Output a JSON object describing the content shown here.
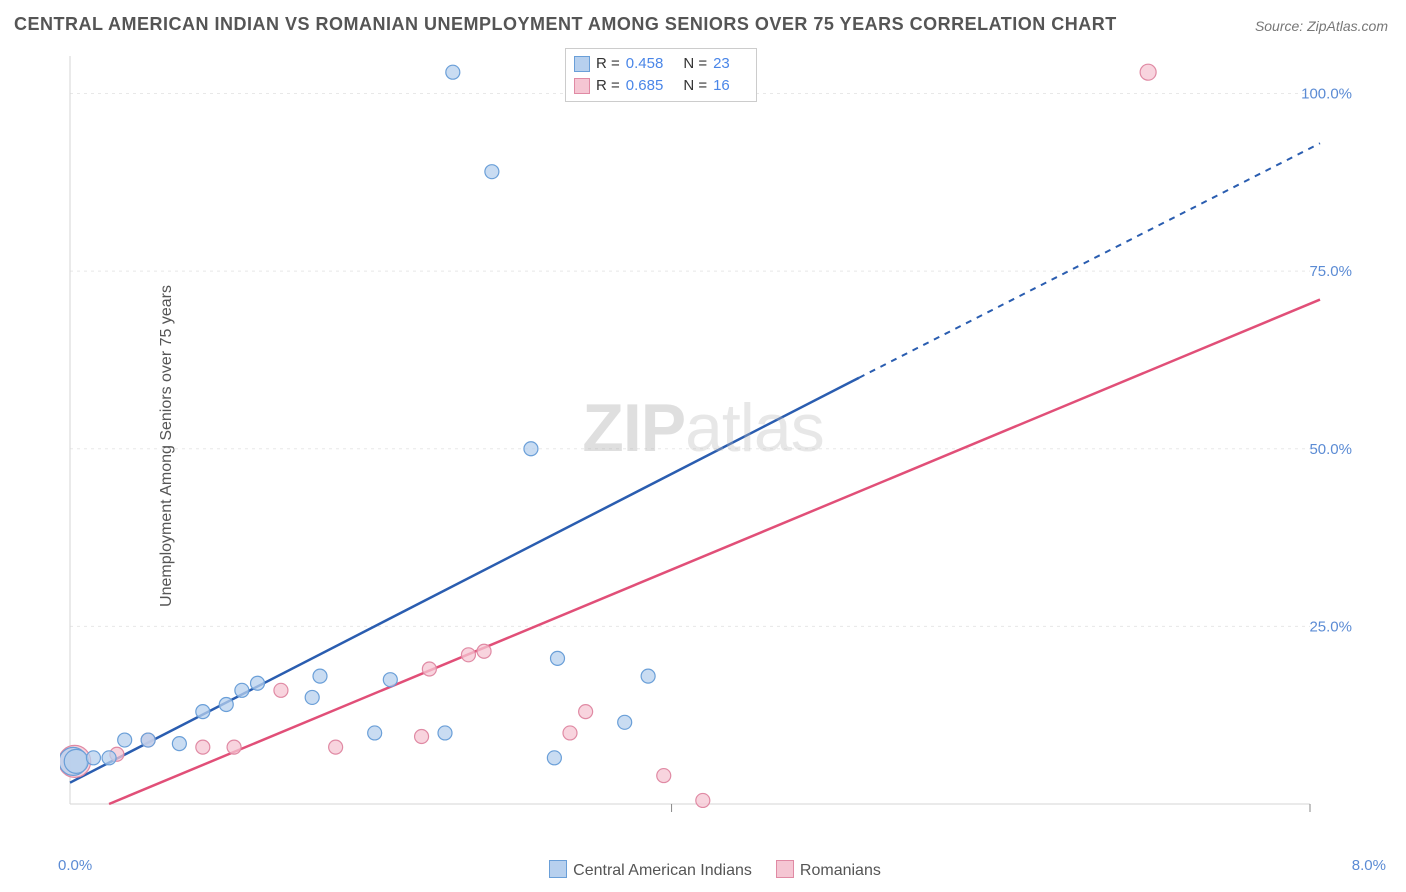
{
  "title": "CENTRAL AMERICAN INDIAN VS ROMANIAN UNEMPLOYMENT AMONG SENIORS OVER 75 YEARS CORRELATION CHART",
  "source_label": "Source: ZipAtlas.com",
  "y_axis_label": "Unemployment Among Seniors over 75 years",
  "watermark_a": "ZIP",
  "watermark_b": "atlas",
  "chart": {
    "type": "scatter",
    "xlim": [
      0,
      8
    ],
    "ylim": [
      0,
      105
    ],
    "x_ticks": {
      "min_label": "0.0%",
      "max_label": "8.0%"
    },
    "y_ticks": [
      {
        "v": 25,
        "label": "25.0%"
      },
      {
        "v": 50,
        "label": "50.0%"
      },
      {
        "v": 75,
        "label": "75.0%"
      },
      {
        "v": 100,
        "label": "100.0%"
      }
    ],
    "grid_color": "#e8e8e8",
    "axis_color": "#d6d6d6",
    "background_color": "#ffffff",
    "tick_label_color": "#5b8bd4",
    "series": [
      {
        "name": "Central American Indians",
        "fill": "#b7d0ee",
        "stroke": "#6a9fd8",
        "line_color": "#2a5db0",
        "trend": {
          "x1": 0.0,
          "y1": 3.0,
          "x2": 5.05,
          "y2": 60.0,
          "dash_from_x": 5.05,
          "dash_to": [
            8.0,
            93.0
          ]
        },
        "R": "0.458",
        "N": "23",
        "points": [
          {
            "x": 0.02,
            "y": 6.0,
            "r": 14
          },
          {
            "x": 0.04,
            "y": 6.0,
            "r": 12
          },
          {
            "x": 0.15,
            "y": 6.5,
            "r": 7
          },
          {
            "x": 0.25,
            "y": 6.5,
            "r": 7
          },
          {
            "x": 0.35,
            "y": 9.0,
            "r": 7
          },
          {
            "x": 0.5,
            "y": 9.0,
            "r": 7
          },
          {
            "x": 0.7,
            "y": 8.5,
            "r": 7
          },
          {
            "x": 0.85,
            "y": 13.0,
            "r": 7
          },
          {
            "x": 1.0,
            "y": 14.0,
            "r": 7
          },
          {
            "x": 1.1,
            "y": 16.0,
            "r": 7
          },
          {
            "x": 1.2,
            "y": 17.0,
            "r": 7
          },
          {
            "x": 1.55,
            "y": 15.0,
            "r": 7
          },
          {
            "x": 1.6,
            "y": 18.0,
            "r": 7
          },
          {
            "x": 1.95,
            "y": 10.0,
            "r": 7
          },
          {
            "x": 2.05,
            "y": 17.5,
            "r": 7
          },
          {
            "x": 2.4,
            "y": 10.0,
            "r": 7
          },
          {
            "x": 2.45,
            "y": 103.0,
            "r": 7
          },
          {
            "x": 2.7,
            "y": 89.0,
            "r": 7
          },
          {
            "x": 3.1,
            "y": 6.5,
            "r": 7
          },
          {
            "x": 3.12,
            "y": 20.5,
            "r": 7
          },
          {
            "x": 3.55,
            "y": 11.5,
            "r": 7
          },
          {
            "x": 3.7,
            "y": 18.0,
            "r": 7
          },
          {
            "x": 2.95,
            "y": 50.0,
            "r": 7
          }
        ]
      },
      {
        "name": "Romanians",
        "fill": "#f5c6d3",
        "stroke": "#e08aa4",
        "line_color": "#e14f78",
        "trend": {
          "x1": 0.25,
          "y1": 0.0,
          "x2": 8.0,
          "y2": 71.0,
          "dash_from_x": 8.0,
          "dash_to": null
        },
        "R": "0.685",
        "N": "16",
        "points": [
          {
            "x": 0.03,
            "y": 6.0,
            "r": 16
          },
          {
            "x": 0.3,
            "y": 7.0,
            "r": 7
          },
          {
            "x": 0.5,
            "y": 9.0,
            "r": 7
          },
          {
            "x": 0.85,
            "y": 8.0,
            "r": 7
          },
          {
            "x": 1.05,
            "y": 8.0,
            "r": 7
          },
          {
            "x": 1.35,
            "y": 16.0,
            "r": 7
          },
          {
            "x": 1.7,
            "y": 8.0,
            "r": 7
          },
          {
            "x": 2.25,
            "y": 9.5,
            "r": 7
          },
          {
            "x": 2.3,
            "y": 19.0,
            "r": 7
          },
          {
            "x": 2.55,
            "y": 21.0,
            "r": 7
          },
          {
            "x": 2.65,
            "y": 21.5,
            "r": 7
          },
          {
            "x": 3.2,
            "y": 10.0,
            "r": 7
          },
          {
            "x": 3.3,
            "y": 13.0,
            "r": 7
          },
          {
            "x": 3.8,
            "y": 4.0,
            "r": 7
          },
          {
            "x": 4.05,
            "y": 0.5,
            "r": 7
          },
          {
            "x": 6.9,
            "y": 103.0,
            "r": 8
          }
        ]
      }
    ]
  },
  "stat_legend": {
    "rows": [
      {
        "swatch_fill": "#b7d0ee",
        "swatch_stroke": "#6a9fd8",
        "R_lbl": "R =",
        "R": "0.458",
        "N_lbl": "N =",
        "N": "23"
      },
      {
        "swatch_fill": "#f5c6d3",
        "swatch_stroke": "#e08aa4",
        "R_lbl": "R =",
        "R": "0.685",
        "N_lbl": "N =",
        "N": "16"
      }
    ]
  },
  "bottom_legend": {
    "items": [
      {
        "fill": "#b7d0ee",
        "stroke": "#6a9fd8",
        "label": "Central American Indians"
      },
      {
        "fill": "#f5c6d3",
        "stroke": "#e08aa4",
        "label": "Romanians"
      }
    ]
  }
}
